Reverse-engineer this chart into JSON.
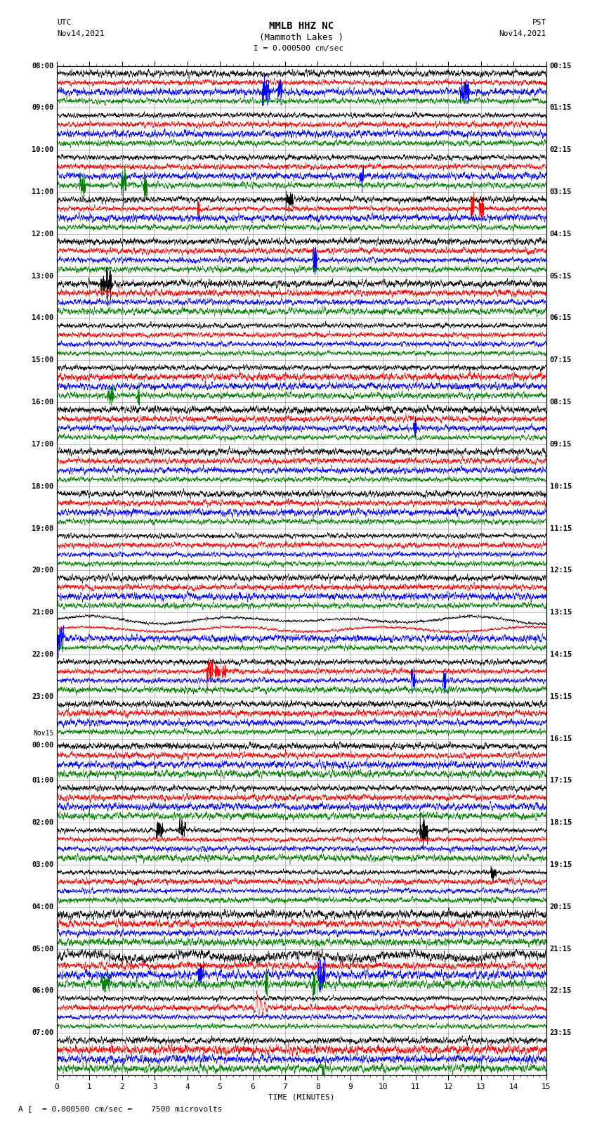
{
  "title_line1": "MMLB HHZ NC",
  "title_line2": "(Mammoth Lakes )",
  "title_line3": "I = 0.000500 cm/sec",
  "utc_label": "UTC",
  "utc_date": "Nov14,2021",
  "pst_label": "PST",
  "pst_date": "Nov14,2021",
  "xlabel": "TIME (MINUTES)",
  "footer_scale": "= 0.000500 cm/sec =    7500 microvolts",
  "footer_prefix": "A [",
  "x_min": 0,
  "x_max": 15,
  "x_ticks": [
    0,
    1,
    2,
    3,
    4,
    5,
    6,
    7,
    8,
    9,
    10,
    11,
    12,
    13,
    14,
    15
  ],
  "left_times": [
    "08:00",
    "09:00",
    "10:00",
    "11:00",
    "12:00",
    "13:00",
    "14:00",
    "15:00",
    "16:00",
    "17:00",
    "18:00",
    "19:00",
    "20:00",
    "21:00",
    "22:00",
    "23:00",
    "Nov15\n00:00",
    "01:00",
    "02:00",
    "03:00",
    "04:00",
    "05:00",
    "06:00",
    "07:00"
  ],
  "right_times": [
    "00:15",
    "01:15",
    "02:15",
    "03:15",
    "04:15",
    "05:15",
    "06:15",
    "07:15",
    "08:15",
    "09:15",
    "10:15",
    "11:15",
    "12:15",
    "13:15",
    "14:15",
    "15:15",
    "16:15",
    "17:15",
    "18:15",
    "19:15",
    "20:15",
    "21:15",
    "22:15",
    "23:15"
  ],
  "n_rows": 24,
  "traces_per_row": 4,
  "colors": [
    "black",
    "red",
    "blue",
    "green"
  ],
  "bg_color": "white",
  "grid_color": "#888888",
  "figure_width": 8.5,
  "figure_height": 16.13,
  "dpi": 100,
  "noise_amplitude": 0.025,
  "noise_seed": 42,
  "event_row": 22,
  "event_col": 1,
  "event_minute": 6.1,
  "event_amplitude": 0.45,
  "event_duration_minutes": 0.5,
  "large_wave_row": 13,
  "large_wave_col": 0,
  "large_wave_amplitude": 0.08,
  "quake_row_black": 21,
  "quake_minute": 6.1
}
